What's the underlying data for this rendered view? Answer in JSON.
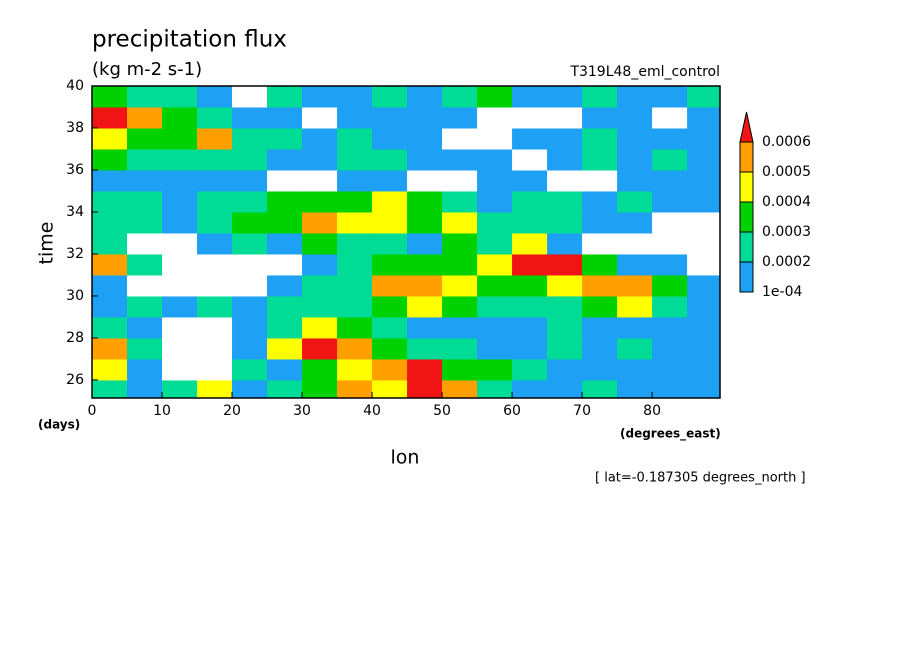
{
  "chart_data": {
    "type": "contour",
    "title": "precipitation flux",
    "subtitle": "(kg m-2 s-1)",
    "run_label": "T319L48_eml_control",
    "x_label": "lon",
    "y_label": "time",
    "x_units": "(degrees_east)",
    "y_units": "(days)",
    "footnote": "[ lat=-0.187305 degrees_north ]",
    "xlim": [
      0,
      89.7
    ],
    "ylim": [
      25.14,
      40
    ],
    "xticks": [
      0,
      10,
      20,
      30,
      40,
      50,
      60,
      70,
      80
    ],
    "yticks": [
      26,
      28,
      30,
      32,
      34,
      36,
      38,
      40
    ],
    "levels": [
      {
        "value": 0.0001,
        "label": "1e-04"
      },
      0.0002,
      0.0003,
      0.0004,
      0.0005,
      0.0006
    ],
    "colors": [
      "#ffffff",
      "#1ea0f5",
      "#00dc96",
      "#00d200",
      "#ffff00",
      "#ffa000",
      "#f01414"
    ],
    "x": [
      2.5,
      7.5,
      12.5,
      17.5,
      22.5,
      27.5,
      32.5,
      37.5,
      42.5,
      47.5,
      52.5,
      57.5,
      62.5,
      67.5,
      72.5,
      77.5,
      82.5,
      87.5
    ],
    "y": [
      25.5,
      26.5,
      27.5,
      28.5,
      29.5,
      30.5,
      31.5,
      32.5,
      33.5,
      34.5,
      35.5,
      36.5,
      37.5,
      38.5,
      39.5
    ],
    "z": [
      [
        0.00025,
        0.00015,
        0.00025,
        0.00045,
        0.00015,
        0.00025,
        0.00035,
        0.00055,
        0.00045,
        0.00065,
        0.00055,
        0.00025,
        0.00015,
        0.00015,
        0.00025,
        0.00015,
        0.00015,
        0.00015
      ],
      [
        0.00045,
        0.00015,
        0,
        0,
        0.00025,
        0.00015,
        0.00035,
        0.00045,
        0.00055,
        0.00065,
        0.00035,
        0.00035,
        0.00025,
        0.00015,
        0.00015,
        0.00015,
        0.00015,
        0.00015
      ],
      [
        0.00055,
        0.00025,
        0,
        0,
        0.00015,
        0.00045,
        0.00065,
        0.00055,
        0.00035,
        0.00025,
        0.00025,
        0.00015,
        0.00015,
        0.00025,
        0.00015,
        0.00025,
        0.00015,
        0.00015
      ],
      [
        0.00025,
        0.00015,
        0,
        0,
        0.00015,
        0.00025,
        0.00045,
        0.00035,
        0.00025,
        0.00015,
        0.00015,
        0.00015,
        0.00015,
        0.00025,
        0.00015,
        0.00015,
        0.00015,
        0.00015
      ],
      [
        0.00015,
        0.00025,
        0.00015,
        0.00025,
        0.00015,
        0.00025,
        0.00025,
        0.00025,
        0.00035,
        0.00045,
        0.00035,
        0.00025,
        0.00025,
        0.00025,
        0.00035,
        0.00045,
        0.00025,
        0.00015
      ],
      [
        0.00015,
        0,
        0,
        0,
        0,
        0.00015,
        0.00025,
        0.00025,
        0.00055,
        0.00055,
        0.00045,
        0.00035,
        0.00035,
        0.00045,
        0.00055,
        0.00055,
        0.00035,
        0.00015
      ],
      [
        0.00055,
        0.00025,
        0,
        0,
        0,
        0,
        0.00015,
        0.00025,
        0.00035,
        0.00035,
        0.00035,
        0.00045,
        0.00065,
        0.00065,
        0.00035,
        0.00015,
        0.00015,
        0
      ],
      [
        0.00025,
        0,
        0,
        0.00015,
        0.00025,
        0.00015,
        0.00035,
        0.00025,
        0.00025,
        0.00015,
        0.00035,
        0.00025,
        0.00045,
        0.00015,
        0,
        0,
        0,
        0
      ],
      [
        0.00025,
        0.00025,
        0.00015,
        0.00025,
        0.00035,
        0.00035,
        0.00055,
        0.00045,
        0.00045,
        0.00035,
        0.00045,
        0.00025,
        0.00025,
        0.00025,
        0.00015,
        0.00015,
        0,
        0
      ],
      [
        0.00025,
        0.00025,
        0.00015,
        0.00025,
        0.00025,
        0.00035,
        0.00035,
        0.00035,
        0.00045,
        0.00035,
        0.00025,
        0.00015,
        0.00025,
        0.00025,
        0.00015,
        0.00025,
        0.00015,
        0.00015
      ],
      [
        0.00015,
        0.00015,
        0.00015,
        0.00015,
        0.00015,
        0,
        0,
        0.00015,
        0.00015,
        0,
        0,
        0.00015,
        0.00015,
        0,
        0,
        0.00015,
        0.00015,
        0.00015
      ],
      [
        0.00035,
        0.00025,
        0.00025,
        0.00025,
        0.00025,
        0.00015,
        0.00015,
        0.00025,
        0.00025,
        0.00015,
        0.00015,
        0.00015,
        0,
        0.00015,
        0.00025,
        0.00015,
        0.00025,
        0.00015
      ],
      [
        0.00045,
        0.00035,
        0.00035,
        0.00055,
        0.00025,
        0.00025,
        0.00015,
        0.00025,
        0.00015,
        0.00015,
        0,
        0,
        0.00015,
        0.00015,
        0.00025,
        0.00015,
        0.00015,
        0.00015
      ],
      [
        0.00065,
        0.00055,
        0.00035,
        0.00025,
        0.00015,
        0.00015,
        0,
        0.00015,
        0.00015,
        0.00015,
        0.00015,
        0,
        0,
        0,
        0.00015,
        0.00015,
        0,
        0.00015
      ],
      [
        0.00035,
        0.00025,
        0.00025,
        0.00015,
        0,
        0.00025,
        0.00015,
        0.00015,
        0.00025,
        0.00015,
        0.00025,
        0.00035,
        0.00015,
        0.00015,
        0.00025,
        0.00015,
        0.00015,
        0.00025
      ]
    ]
  }
}
